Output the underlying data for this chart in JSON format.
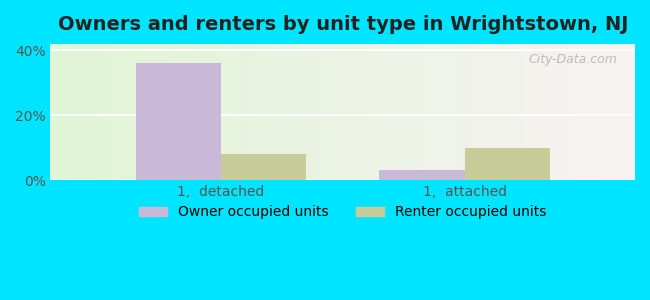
{
  "title": "Owners and renters by unit type in Wrightstown, NJ",
  "categories": [
    "1,  detached",
    "1,  attached"
  ],
  "owner_values": [
    36.0,
    3.0
  ],
  "renter_values": [
    8.0,
    10.0
  ],
  "owner_color": "#c9b8d8",
  "renter_color": "#c8cc99",
  "bar_width": 0.35,
  "ylim": [
    0,
    42
  ],
  "yticks": [
    0,
    20,
    40
  ],
  "ytick_labels": [
    "0%",
    "20%",
    "40%"
  ],
  "legend_owner": "Owner occupied units",
  "legend_renter": "Renter occupied units",
  "title_fontsize": 14,
  "tick_fontsize": 10,
  "legend_fontsize": 10,
  "outer_bg": "#00e5ff"
}
